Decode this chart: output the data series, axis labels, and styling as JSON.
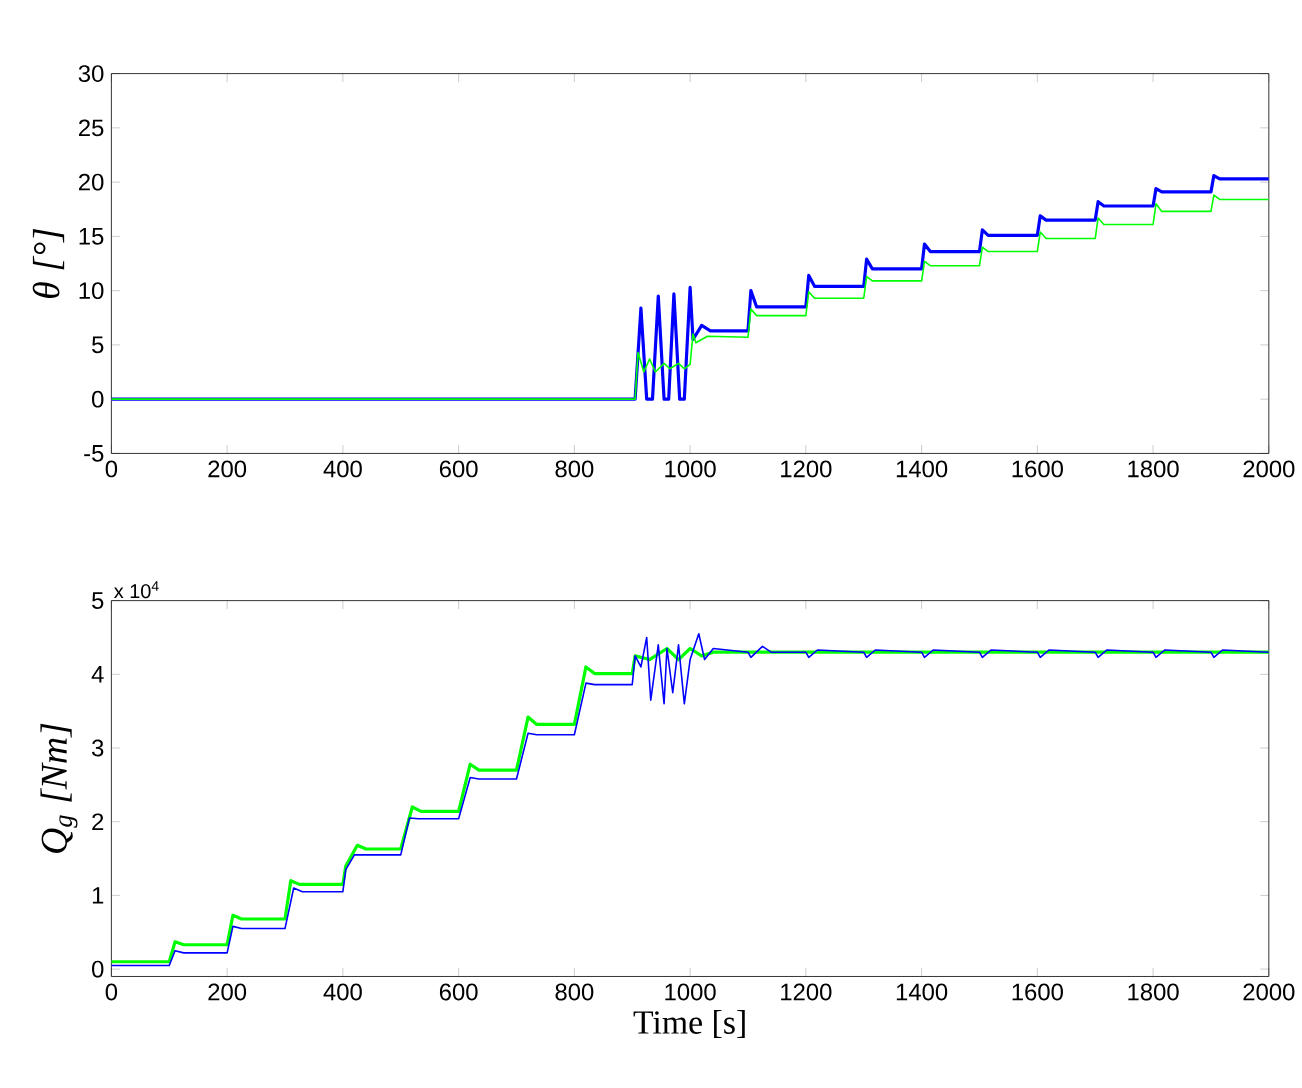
{
  "chart_data": [
    {
      "type": "line",
      "ylabel": "θ [°]",
      "xlim": [
        0,
        2000
      ],
      "xticks": [
        0,
        200,
        400,
        600,
        800,
        1000,
        1200,
        1400,
        1600,
        1800,
        2000
      ],
      "ylim": [
        -5,
        30
      ],
      "yticks": [
        -5,
        0,
        5,
        10,
        15,
        20,
        25,
        30
      ],
      "series": [
        {
          "color": "#0000ff",
          "x": [
            0,
            905,
            915,
            925,
            935,
            945,
            955,
            963,
            972,
            982,
            990,
            1000,
            1005,
            1020,
            1035,
            1100,
            1105,
            1115,
            1200,
            1205,
            1215,
            1300,
            1305,
            1315,
            1400,
            1405,
            1415,
            1500,
            1505,
            1515,
            1600,
            1605,
            1615,
            1700,
            1705,
            1715,
            1800,
            1805,
            1815,
            1900,
            1905,
            1915,
            2000
          ],
          "values": [
            0,
            0,
            8.4,
            0,
            0,
            9.5,
            0,
            0,
            9.7,
            0,
            0,
            10.3,
            5.5,
            6.8,
            6.3,
            6.3,
            10,
            8.5,
            8.5,
            11.4,
            10.4,
            10.4,
            12.9,
            12,
            12,
            14.3,
            13.6,
            13.6,
            15.6,
            15.1,
            15.1,
            16.9,
            16.5,
            16.5,
            18.2,
            17.8,
            17.8,
            19.4,
            19.1,
            19.1,
            20.6,
            20.3,
            20.3
          ]
        },
        {
          "color": "#00ff00",
          "x": [
            0,
            905,
            910,
            920,
            930,
            940,
            955,
            965,
            980,
            990,
            1000,
            1005,
            1010,
            1030,
            1100,
            1105,
            1115,
            1200,
            1205,
            1215,
            1300,
            1305,
            1315,
            1400,
            1405,
            1415,
            1500,
            1505,
            1515,
            1600,
            1605,
            1615,
            1700,
            1705,
            1715,
            1800,
            1805,
            1815,
            1900,
            1905,
            1915,
            2000
          ],
          "values": [
            0,
            0,
            4.3,
            2.5,
            3.7,
            2.5,
            3.3,
            2.8,
            3.3,
            2.8,
            3.2,
            6,
            5.2,
            5.8,
            5.7,
            8.3,
            7.7,
            7.7,
            9.9,
            9.3,
            9.3,
            11.3,
            10.9,
            10.9,
            12.7,
            12.3,
            12.3,
            14,
            13.6,
            13.6,
            15.4,
            14.8,
            14.8,
            16.7,
            16.1,
            16.1,
            18,
            17.3,
            17.3,
            18.8,
            18.4,
            18.4
          ]
        }
      ]
    },
    {
      "type": "line",
      "xlabel": "Time [s]",
      "ylabel": "Q$_{g}$ [Nm]",
      "annotations": [
        "x 10$^{4}$"
      ],
      "xlim": [
        0,
        2000
      ],
      "xticks": [
        0,
        200,
        400,
        600,
        800,
        1000,
        1200,
        1400,
        1600,
        1800,
        2000
      ],
      "ylim": [
        -0.1,
        5
      ],
      "yticks": [
        0,
        1,
        2,
        3,
        4,
        5
      ],
      "series": [
        {
          "color": "#00ff00",
          "x": [
            0,
            100,
            110,
            125,
            200,
            210,
            225,
            300,
            310,
            325,
            400,
            405,
            425,
            440,
            500,
            520,
            535,
            600,
            620,
            635,
            700,
            720,
            735,
            800,
            820,
            835,
            900,
            905,
            930,
            960,
            980,
            1000,
            1020,
            1040,
            2000
          ],
          "values": [
            0.1,
            0.1,
            0.37,
            0.33,
            0.33,
            0.73,
            0.68,
            0.68,
            1.2,
            1.15,
            1.15,
            1.4,
            1.68,
            1.63,
            1.63,
            2.2,
            2.14,
            2.14,
            2.78,
            2.7,
            2.7,
            3.42,
            3.32,
            3.32,
            4.1,
            4.01,
            4.01,
            4.25,
            4.2,
            4.35,
            4.2,
            4.35,
            4.25,
            4.3,
            4.3
          ]
        },
        {
          "color": "#0000ff",
          "x": [
            0,
            100,
            110,
            125,
            200,
            210,
            225,
            300,
            315,
            330,
            400,
            405,
            420,
            500,
            515,
            530,
            600,
            620,
            635,
            700,
            720,
            735,
            800,
            820,
            835,
            900,
            905,
            915,
            925,
            932,
            945,
            955,
            960,
            970,
            980,
            990,
            1000,
            1015,
            1025,
            1040,
            1100,
            1105,
            1125,
            1140,
            1200,
            1205,
            1220,
            1300,
            1305,
            1320,
            1400,
            1405,
            1420,
            1500,
            1505,
            1520,
            1600,
            1605,
            1620,
            1700,
            1705,
            1720,
            1800,
            1805,
            1820,
            1900,
            1905,
            1920,
            2000
          ],
          "values": [
            0.05,
            0.05,
            0.25,
            0.22,
            0.22,
            0.58,
            0.55,
            0.55,
            1.1,
            1.05,
            1.05,
            1.35,
            1.55,
            1.55,
            2.05,
            2.04,
            2.04,
            2.6,
            2.58,
            2.58,
            3.2,
            3.18,
            3.18,
            3.88,
            3.86,
            3.86,
            4.25,
            4.1,
            4.5,
            3.65,
            4.4,
            3.6,
            4.35,
            3.75,
            4.4,
            3.6,
            4.2,
            4.55,
            4.2,
            4.35,
            4.3,
            4.23,
            4.38,
            4.3,
            4.3,
            4.23,
            4.33,
            4.3,
            4.23,
            4.33,
            4.3,
            4.23,
            4.33,
            4.3,
            4.23,
            4.33,
            4.3,
            4.23,
            4.33,
            4.3,
            4.23,
            4.33,
            4.3,
            4.23,
            4.33,
            4.3,
            4.23,
            4.33,
            4.3
          ]
        }
      ]
    }
  ]
}
